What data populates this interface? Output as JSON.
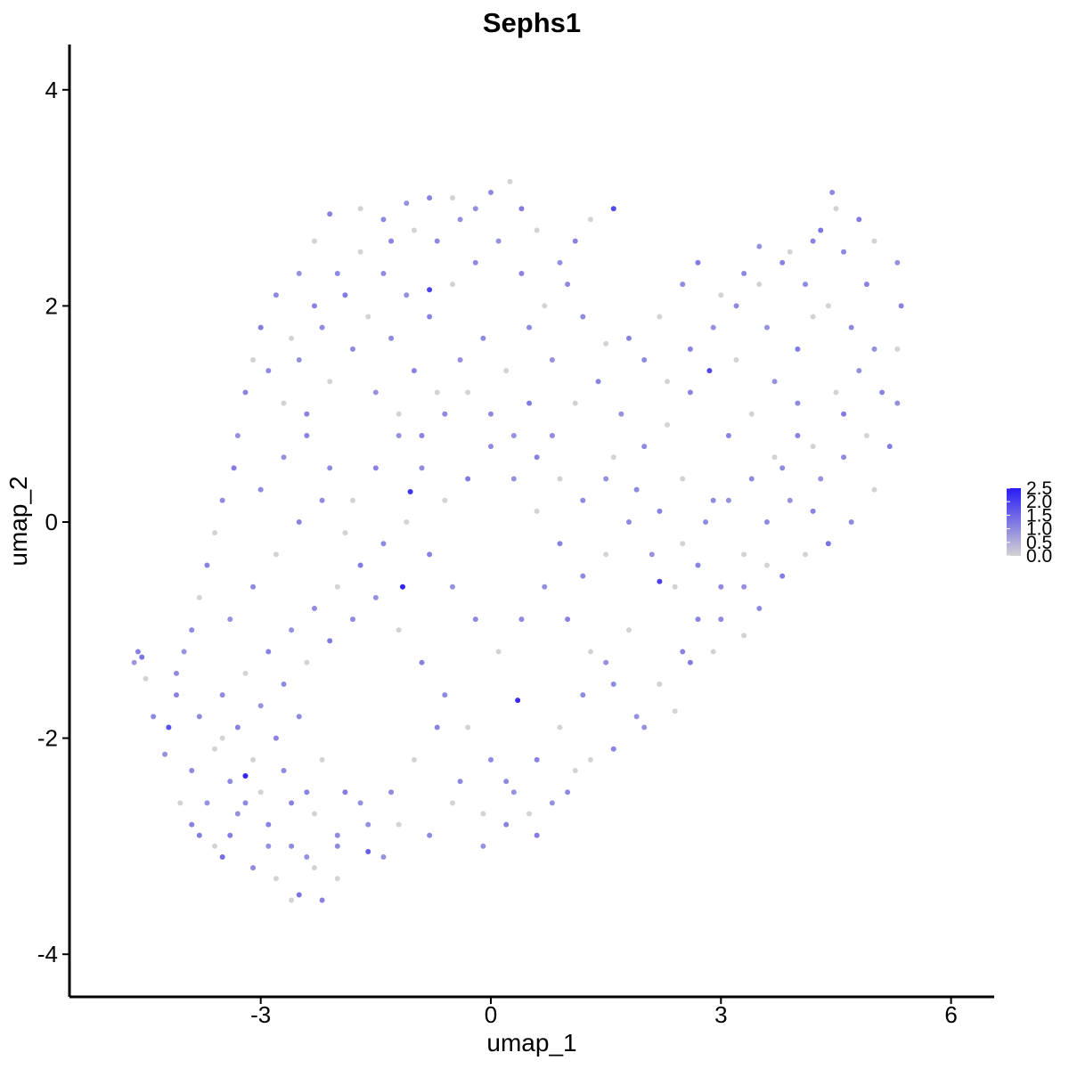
{
  "chart_data": {
    "type": "scatter",
    "title": "Sephs1",
    "xlabel": "umap_1",
    "ylabel": "umap_2",
    "xlim": [
      -5.4,
      6.6
    ],
    "ylim": [
      -4.4,
      4.4
    ],
    "x_ticks": [
      -3,
      0,
      3,
      6
    ],
    "x_tick_labels": [
      "-3",
      "0",
      "3",
      "6"
    ],
    "y_ticks": [
      -4,
      -2,
      0,
      2,
      4
    ],
    "y_tick_labels": [
      "-4",
      "-2",
      "0",
      "2",
      "4"
    ],
    "grid": false,
    "legend_position": "right",
    "color_scale": {
      "low_color": "#d3d3d3",
      "high_color": "#2a1cf5",
      "range": [
        0.0,
        2.5
      ],
      "breaks": [
        0.0,
        0.5,
        1.0,
        1.5,
        2.0,
        2.5
      ],
      "labels": [
        "0.0",
        "0.5",
        "1.0",
        "1.5",
        "2.0",
        "2.5"
      ]
    },
    "points": [
      [
        -4.6,
        -1.2,
        1.1
      ],
      [
        -4.65,
        -1.3,
        0.8
      ],
      [
        -4.55,
        -1.25,
        1.3
      ],
      [
        -4.5,
        -1.45,
        0.0
      ],
      [
        -4.4,
        -1.8,
        1.0
      ],
      [
        -4.2,
        -1.9,
        1.8
      ],
      [
        -4.25,
        -2.15,
        0.9
      ],
      [
        -4.1,
        -1.4,
        1.0
      ],
      [
        -4.05,
        -2.6,
        0.0
      ],
      [
        -3.9,
        -2.8,
        1.1
      ],
      [
        -3.8,
        -2.9,
        1.2
      ],
      [
        -3.6,
        -3.0,
        0.0
      ],
      [
        -3.5,
        -3.1,
        1.4
      ],
      [
        -3.2,
        -2.35,
        2.4
      ],
      [
        -3.3,
        -2.7,
        0.9
      ],
      [
        -3.1,
        -3.2,
        1.0
      ],
      [
        -2.8,
        -3.3,
        0.0
      ],
      [
        -2.6,
        -3.5,
        0.0
      ],
      [
        -2.5,
        -3.45,
        1.3
      ],
      [
        -2.2,
        -3.5,
        1.1
      ],
      [
        -2.4,
        -3.1,
        0.9
      ],
      [
        -2.0,
        -3.3,
        0.0
      ],
      [
        -1.6,
        -3.05,
        1.6
      ],
      [
        -1.4,
        -3.1,
        0.9
      ],
      [
        -1.2,
        -2.8,
        0.0
      ],
      [
        -0.8,
        -2.9,
        1.0
      ],
      [
        -0.5,
        -2.6,
        0.0
      ],
      [
        -0.1,
        -3.0,
        0.9
      ],
      [
        0.2,
        -2.8,
        1.1
      ],
      [
        0.5,
        -2.7,
        0.0
      ],
      [
        0.6,
        -2.9,
        1.2
      ],
      [
        1.0,
        -2.5,
        1.0
      ],
      [
        1.3,
        -2.2,
        0.0
      ],
      [
        1.6,
        -2.1,
        1.1
      ],
      [
        2.0,
        -1.9,
        0.9
      ],
      [
        2.4,
        -1.75,
        0.0
      ],
      [
        2.6,
        -1.3,
        1.2
      ],
      [
        2.9,
        -1.2,
        0.0
      ],
      [
        3.3,
        -1.05,
        0.0
      ],
      [
        3.5,
        -0.8,
        1.0
      ],
      [
        3.8,
        -0.5,
        1.2
      ],
      [
        4.1,
        -0.3,
        0.0
      ],
      [
        4.4,
        -0.2,
        1.3
      ],
      [
        4.7,
        0.0,
        1.0
      ],
      [
        5.0,
        0.3,
        0.0
      ],
      [
        5.2,
        0.7,
        1.2
      ],
      [
        5.3,
        1.1,
        0.9
      ],
      [
        5.3,
        1.6,
        0.0
      ],
      [
        5.35,
        2.0,
        1.1
      ],
      [
        5.3,
        2.4,
        0.9
      ],
      [
        5.0,
        2.6,
        0.0
      ],
      [
        4.8,
        2.8,
        1.2
      ],
      [
        4.45,
        3.05,
        1.0
      ],
      [
        4.5,
        2.9,
        0.0
      ],
      [
        4.2,
        2.6,
        1.1
      ],
      [
        3.9,
        2.5,
        0.0
      ],
      [
        3.5,
        2.55,
        0.9
      ],
      [
        3.3,
        2.3,
        1.0
      ],
      [
        3.0,
        2.1,
        0.0
      ],
      [
        2.7,
        2.4,
        1.2
      ],
      [
        2.5,
        2.2,
        1.0
      ],
      [
        2.2,
        1.9,
        0.0
      ],
      [
        1.8,
        1.7,
        1.1
      ],
      [
        1.5,
        1.65,
        0.0
      ],
      [
        1.2,
        1.9,
        1.0
      ],
      [
        1.6,
        2.9,
        1.9
      ],
      [
        1.3,
        2.8,
        0.0
      ],
      [
        1.1,
        2.6,
        1.1
      ],
      [
        0.9,
        2.4,
        0.9
      ],
      [
        0.6,
        2.7,
        0.0
      ],
      [
        0.4,
        2.9,
        1.2
      ],
      [
        0.25,
        3.15,
        0.0
      ],
      [
        0.0,
        3.05,
        1.0
      ],
      [
        -0.2,
        2.9,
        0.9
      ],
      [
        -0.5,
        3.0,
        0.0
      ],
      [
        -0.8,
        3.0,
        1.1
      ],
      [
        -1.1,
        2.95,
        0.9
      ],
      [
        -1.4,
        2.8,
        1.0
      ],
      [
        -1.7,
        2.9,
        0.0
      ],
      [
        -2.1,
        2.85,
        1.1
      ],
      [
        -2.3,
        2.6,
        0.0
      ],
      [
        -2.5,
        2.3,
        0.9
      ],
      [
        -2.8,
        2.1,
        1.0
      ],
      [
        -3.0,
        1.8,
        1.2
      ],
      [
        -3.1,
        1.5,
        0.0
      ],
      [
        -3.2,
        1.2,
        1.1
      ],
      [
        -3.3,
        0.8,
        0.9
      ],
      [
        -3.35,
        0.5,
        1.2
      ],
      [
        -3.5,
        0.2,
        1.0
      ],
      [
        -3.6,
        -0.1,
        0.0
      ],
      [
        -3.7,
        -0.4,
        1.1
      ],
      [
        -3.8,
        -0.7,
        0.0
      ],
      [
        -3.9,
        -1.0,
        1.0
      ],
      [
        -4.0,
        -1.2,
        0.9
      ],
      [
        -1.15,
        -0.6,
        2.4
      ],
      [
        -1.05,
        0.28,
        2.2
      ],
      [
        -0.8,
        2.15,
        2.0
      ],
      [
        0.35,
        -1.65,
        2.3
      ],
      [
        2.2,
        -0.55,
        2.0
      ],
      [
        2.85,
        1.4,
        1.9
      ],
      [
        4.3,
        2.7,
        1.3
      ],
      [
        4.6,
        2.5,
        1.0
      ],
      [
        4.9,
        2.2,
        1.1
      ],
      [
        4.2,
        1.9,
        0.0
      ],
      [
        4.0,
        1.6,
        1.2
      ],
      [
        3.7,
        1.3,
        0.9
      ],
      [
        3.4,
        1.0,
        0.0
      ],
      [
        3.1,
        0.8,
        1.1
      ],
      [
        3.8,
        0.5,
        1.0
      ],
      [
        4.2,
        0.7,
        0.0
      ],
      [
        4.6,
        1.0,
        1.2
      ],
      [
        4.8,
        1.4,
        0.9
      ],
      [
        4.5,
        1.2,
        0.0
      ],
      [
        4.0,
        1.1,
        1.0
      ],
      [
        3.6,
        1.8,
        0.9
      ],
      [
        3.2,
        1.5,
        0.0
      ],
      [
        2.6,
        1.2,
        1.1
      ],
      [
        2.3,
        0.9,
        0.0
      ],
      [
        2.0,
        0.7,
        1.0
      ],
      [
        1.7,
        1.0,
        0.9
      ],
      [
        1.4,
        1.3,
        1.1
      ],
      [
        1.1,
        1.1,
        0.0
      ],
      [
        0.8,
        0.8,
        1.0
      ],
      [
        0.5,
        1.1,
        1.2
      ],
      [
        0.2,
        1.4,
        0.0
      ],
      [
        -0.1,
        1.7,
        1.0
      ],
      [
        -0.4,
        1.5,
        0.9
      ],
      [
        -0.7,
        1.2,
        0.0
      ],
      [
        -1.0,
        1.4,
        1.1
      ],
      [
        -1.3,
        1.7,
        1.0
      ],
      [
        -1.6,
        1.9,
        0.0
      ],
      [
        -1.9,
        2.1,
        1.2
      ],
      [
        -2.2,
        1.8,
        1.0
      ],
      [
        -2.5,
        1.5,
        0.9
      ],
      [
        -2.7,
        1.1,
        0.0
      ],
      [
        -2.4,
        0.8,
        1.1
      ],
      [
        -2.1,
        0.5,
        1.0
      ],
      [
        -1.8,
        0.2,
        0.0
      ],
      [
        -1.5,
        0.5,
        1.1
      ],
      [
        -1.2,
        0.8,
        0.9
      ],
      [
        -0.9,
        0.5,
        1.0
      ],
      [
        -0.6,
        0.2,
        0.0
      ],
      [
        -0.3,
        0.4,
        1.2
      ],
      [
        0.0,
        0.7,
        1.0
      ],
      [
        0.3,
        0.4,
        0.9
      ],
      [
        0.6,
        0.1,
        0.0
      ],
      [
        0.9,
        -0.2,
        1.1
      ],
      [
        1.2,
        -0.5,
        1.0
      ],
      [
        1.5,
        -0.3,
        0.0
      ],
      [
        1.8,
        0.0,
        1.0
      ],
      [
        2.1,
        -0.3,
        0.9
      ],
      [
        2.4,
        -0.6,
        0.0
      ],
      [
        2.7,
        -0.9,
        1.1
      ],
      [
        3.0,
        -0.6,
        1.0
      ],
      [
        3.3,
        -0.3,
        0.0
      ],
      [
        3.6,
        0.0,
        1.0
      ],
      [
        3.9,
        0.2,
        0.9
      ],
      [
        4.2,
        0.1,
        1.1
      ],
      [
        2.5,
        0.4,
        0.0
      ],
      [
        2.9,
        0.2,
        1.0
      ],
      [
        -3.9,
        -2.3,
        1.0
      ],
      [
        -3.6,
        -2.1,
        0.0
      ],
      [
        -3.3,
        -1.9,
        1.1
      ],
      [
        -3.0,
        -1.7,
        0.9
      ],
      [
        -2.7,
        -1.5,
        1.0
      ],
      [
        -2.4,
        -1.3,
        0.0
      ],
      [
        -2.1,
        -1.1,
        1.2
      ],
      [
        -1.8,
        -0.9,
        1.0
      ],
      [
        -1.5,
        -0.7,
        0.9
      ],
      [
        -1.2,
        -1.0,
        0.0
      ],
      [
        -0.9,
        -1.3,
        1.1
      ],
      [
        -0.6,
        -1.6,
        1.0
      ],
      [
        -0.3,
        -1.9,
        0.0
      ],
      [
        0.0,
        -2.2,
        1.0
      ],
      [
        0.3,
        -2.5,
        0.9
      ],
      [
        0.6,
        -2.2,
        1.1
      ],
      [
        0.9,
        -1.9,
        0.0
      ],
      [
        1.2,
        -1.6,
        1.0
      ],
      [
        1.5,
        -1.3,
        0.9
      ],
      [
        1.8,
        -1.0,
        0.0
      ],
      [
        -3.7,
        -2.6,
        0.9
      ],
      [
        -3.4,
        -2.4,
        1.0
      ],
      [
        -3.1,
        -2.2,
        0.0
      ],
      [
        -2.8,
        -2.0,
        1.1
      ],
      [
        -2.5,
        -1.8,
        1.0
      ],
      [
        -2.2,
        -2.2,
        0.0
      ],
      [
        -1.9,
        -2.5,
        1.2
      ],
      [
        -1.6,
        -2.8,
        0.9
      ],
      [
        -1.3,
        -2.5,
        1.0
      ],
      [
        -1.0,
        -2.2,
        0.0
      ],
      [
        -0.7,
        -1.9,
        1.1
      ],
      [
        -0.4,
        -2.4,
        1.0
      ],
      [
        -0.1,
        -2.7,
        0.0
      ],
      [
        0.2,
        -2.4,
        1.0
      ],
      [
        0.8,
        -2.6,
        0.9
      ],
      [
        1.1,
        -2.3,
        0.0
      ],
      [
        -2.9,
        -2.8,
        1.1
      ],
      [
        -2.6,
        -3.0,
        1.0
      ],
      [
        -2.3,
        -2.7,
        0.0
      ],
      [
        -2.0,
        -2.9,
        1.0
      ],
      [
        -1.7,
        -2.6,
        0.9
      ],
      [
        -3.4,
        -2.9,
        1.2
      ],
      [
        -3.0,
        -2.5,
        0.0
      ],
      [
        -2.7,
        -2.3,
        1.0
      ],
      [
        -2.4,
        -2.5,
        1.1
      ],
      [
        -3.5,
        -1.6,
        1.0
      ],
      [
        -3.2,
        -1.4,
        0.0
      ],
      [
        -2.9,
        -1.2,
        1.1
      ],
      [
        -2.6,
        -1.0,
        0.9
      ],
      [
        -2.3,
        -0.8,
        1.0
      ],
      [
        -2.0,
        -0.6,
        0.0
      ],
      [
        -1.7,
        -0.4,
        1.2
      ],
      [
        -1.4,
        -0.2,
        1.0
      ],
      [
        -1.1,
        0.0,
        0.0
      ],
      [
        -0.8,
        -0.3,
        1.1
      ],
      [
        -0.5,
        -0.6,
        0.9
      ],
      [
        -0.2,
        -0.9,
        1.0
      ],
      [
        0.1,
        -1.2,
        0.0
      ],
      [
        0.4,
        -0.9,
        1.0
      ],
      [
        0.7,
        -0.6,
        0.9
      ],
      [
        1.0,
        -0.9,
        1.1
      ],
      [
        1.3,
        -1.2,
        0.0
      ],
      [
        1.6,
        -1.5,
        1.0
      ],
      [
        1.9,
        -1.8,
        0.9
      ],
      [
        2.2,
        -1.5,
        0.0
      ],
      [
        2.5,
        -1.2,
        1.1
      ],
      [
        -3.4,
        -0.9,
        0.9
      ],
      [
        -3.1,
        -0.6,
        1.0
      ],
      [
        -2.8,
        -0.3,
        0.0
      ],
      [
        -2.5,
        0.0,
        1.1
      ],
      [
        -2.2,
        0.2,
        1.0
      ],
      [
        -1.9,
        -0.1,
        0.0
      ],
      [
        -3.0,
        0.3,
        1.0
      ],
      [
        -2.7,
        0.6,
        0.9
      ],
      [
        -2.4,
        1.0,
        1.1
      ],
      [
        -2.1,
        1.3,
        0.0
      ],
      [
        -1.8,
        1.6,
        1.0
      ],
      [
        -1.5,
        1.2,
        0.9
      ],
      [
        -1.2,
        1.0,
        0.0
      ],
      [
        -0.9,
        0.8,
        1.1
      ],
      [
        -0.6,
        1.0,
        1.0
      ],
      [
        -0.3,
        1.2,
        0.0
      ],
      [
        0.0,
        1.0,
        1.0
      ],
      [
        0.3,
        0.8,
        0.9
      ],
      [
        0.6,
        0.6,
        1.1
      ],
      [
        0.9,
        0.4,
        0.0
      ],
      [
        1.2,
        0.2,
        1.0
      ],
      [
        1.5,
        0.4,
        0.9
      ],
      [
        -2.9,
        1.4,
        1.0
      ],
      [
        -2.6,
        1.7,
        0.0
      ],
      [
        -2.3,
        2.0,
        1.1
      ],
      [
        -2.0,
        2.3,
        1.0
      ],
      [
        -1.7,
        2.5,
        0.0
      ],
      [
        -1.4,
        2.3,
        1.0
      ],
      [
        -1.1,
        2.1,
        0.9
      ],
      [
        -0.8,
        1.9,
        1.1
      ],
      [
        -0.5,
        2.2,
        0.0
      ],
      [
        -0.2,
        2.4,
        1.0
      ],
      [
        0.1,
        2.6,
        0.9
      ],
      [
        0.4,
        2.3,
        1.1
      ],
      [
        0.7,
        2.0,
        0.0
      ],
      [
        1.0,
        2.2,
        1.0
      ],
      [
        0.8,
        1.5,
        0.9
      ],
      [
        0.5,
        1.8,
        1.0
      ],
      [
        -1.3,
        2.6,
        1.1
      ],
      [
        -1.0,
        2.7,
        0.0
      ],
      [
        -0.7,
        2.6,
        1.0
      ],
      [
        -0.4,
        2.8,
        0.9
      ],
      [
        2.0,
        1.5,
        1.0
      ],
      [
        2.3,
        1.3,
        0.0
      ],
      [
        2.6,
        1.6,
        1.1
      ],
      [
        2.9,
        1.8,
        0.9
      ],
      [
        3.2,
        2.0,
        1.0
      ],
      [
        3.5,
        2.2,
        0.0
      ],
      [
        3.8,
        2.4,
        1.1
      ],
      [
        4.1,
        2.2,
        1.0
      ],
      [
        4.4,
        2.0,
        0.0
      ],
      [
        4.7,
        1.8,
        1.0
      ],
      [
        5.0,
        1.6,
        0.9
      ],
      [
        5.1,
        1.2,
        1.1
      ],
      [
        4.9,
        0.8,
        0.0
      ],
      [
        4.6,
        0.6,
        1.0
      ],
      [
        4.3,
        0.4,
        0.9
      ],
      [
        4.0,
        0.8,
        1.1
      ],
      [
        3.7,
        0.6,
        0.0
      ],
      [
        3.4,
        0.4,
        1.0
      ],
      [
        3.1,
        0.2,
        0.9
      ],
      [
        2.8,
        0.0,
        1.0
      ],
      [
        2.5,
        -0.2,
        0.0
      ],
      [
        2.2,
        0.1,
        1.1
      ],
      [
        1.9,
        0.3,
        1.0
      ],
      [
        1.6,
        0.6,
        0.0
      ],
      [
        3.0,
        -0.9,
        1.0
      ],
      [
        3.3,
        -0.6,
        0.9
      ],
      [
        3.6,
        -0.4,
        0.0
      ],
      [
        2.7,
        -0.4,
        1.1
      ],
      [
        -4.1,
        -1.6,
        1.1
      ],
      [
        -3.8,
        -1.8,
        1.0
      ],
      [
        -3.5,
        -2.0,
        0.0
      ],
      [
        -3.2,
        -2.6,
        1.0
      ],
      [
        -2.9,
        -3.0,
        0.9
      ],
      [
        -2.6,
        -2.6,
        1.1
      ],
      [
        -2.3,
        -3.2,
        0.0
      ],
      [
        -2.0,
        -3.0,
        1.0
      ]
    ]
  }
}
